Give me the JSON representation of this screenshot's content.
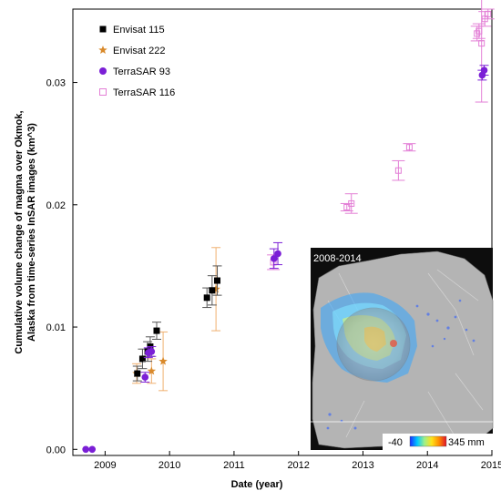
{
  "chart_data": {
    "type": "scatter",
    "xlabel": "Date (year)",
    "ylabel_line1": "Cumulative volume change of magma over Okmok,",
    "ylabel_line2": "Alaska  from time-series InSAR images  (km^3)",
    "xlim": [
      2008.5,
      2015.0
    ],
    "ylim": [
      -0.0005,
      0.036
    ],
    "x_ticks": [
      "2009",
      "2010",
      "2011",
      "2012",
      "2013",
      "2014",
      "2015"
    ],
    "y_ticks": [
      "0.00",
      "0.01",
      "0.02",
      "0.03"
    ],
    "legend_position": "top-left",
    "series": [
      {
        "name": "Envisat 115",
        "marker": "square",
        "color": "#000000",
        "err_color": "#555555",
        "points": [
          {
            "x": 2009.5,
            "y": 0.0062,
            "err": 0.0006
          },
          {
            "x": 2009.58,
            "y": 0.0074,
            "err": 0.0008
          },
          {
            "x": 2009.66,
            "y": 0.008,
            "err": 0.0008
          },
          {
            "x": 2009.7,
            "y": 0.0084,
            "err": 0.0008
          },
          {
            "x": 2009.8,
            "y": 0.0097,
            "err": 0.0007
          },
          {
            "x": 2010.58,
            "y": 0.0124,
            "err": 0.0008
          },
          {
            "x": 2010.66,
            "y": 0.013,
            "err": 0.0012
          },
          {
            "x": 2010.74,
            "y": 0.0138,
            "err": 0.0012
          }
        ]
      },
      {
        "name": "Envisat 222",
        "marker": "star",
        "color": "#d98a2b",
        "err_color": "#f0b070",
        "points": [
          {
            "x": 2009.49,
            "y": 0.0062,
            "err": 0.0008
          },
          {
            "x": 2009.72,
            "y": 0.0064,
            "err": 0.001
          },
          {
            "x": 2009.9,
            "y": 0.0072,
            "err": 0.0024
          },
          {
            "x": 2010.72,
            "y": 0.0131,
            "err": 0.0034
          }
        ]
      },
      {
        "name": "TerraSAR 93",
        "marker": "circle",
        "color": "#7b1fd6",
        "err_color": "#7b1fd6",
        "points": [
          {
            "x": 2008.7,
            "y": 0.0,
            "err": 0.0
          },
          {
            "x": 2008.8,
            "y": 0.0,
            "err": 0.0
          },
          {
            "x": 2009.62,
            "y": 0.0059,
            "err": 0.0004
          },
          {
            "x": 2009.67,
            "y": 0.0079,
            "err": 0.0004
          },
          {
            "x": 2009.72,
            "y": 0.008,
            "err": 0.0004
          },
          {
            "x": 2011.62,
            "y": 0.0156,
            "err": 0.0008
          },
          {
            "x": 2011.68,
            "y": 0.016,
            "err": 0.0009
          },
          {
            "x": 2014.85,
            "y": 0.0306,
            "err": 0.0004
          },
          {
            "x": 2014.88,
            "y": 0.031,
            "err": 0.0004
          }
        ]
      },
      {
        "name": "TerraSAR 116",
        "marker": "open-square",
        "color": "#e37fd6",
        "err_color": "#e37fd6",
        "points": [
          {
            "x": 2011.61,
            "y": 0.0153,
            "err": 0.0006
          },
          {
            "x": 2012.75,
            "y": 0.0198,
            "err": 0.0003
          },
          {
            "x": 2012.82,
            "y": 0.0201,
            "err": 0.0008
          },
          {
            "x": 2013.55,
            "y": 0.0228,
            "err": 0.0008
          },
          {
            "x": 2013.72,
            "y": 0.0247,
            "err": 0.0003
          },
          {
            "x": 2014.77,
            "y": 0.034,
            "err": 0.0006
          },
          {
            "x": 2014.8,
            "y": 0.0342,
            "err": 0.0006
          },
          {
            "x": 2014.84,
            "y": 0.0332,
            "err": 0.0048
          },
          {
            "x": 2014.89,
            "y": 0.0352,
            "err": 0.0006
          },
          {
            "x": 2014.94,
            "y": 0.0356,
            "err": 0.0004
          }
        ]
      }
    ]
  },
  "inset": {
    "title": "2008-2014",
    "colorbar_min": "-40",
    "colorbar_max": "345 mm",
    "colorbar_colors": [
      "#1a2cff",
      "#00c8ff",
      "#9ff08a",
      "#ffe21a",
      "#ff8c00",
      "#e0112b"
    ]
  }
}
